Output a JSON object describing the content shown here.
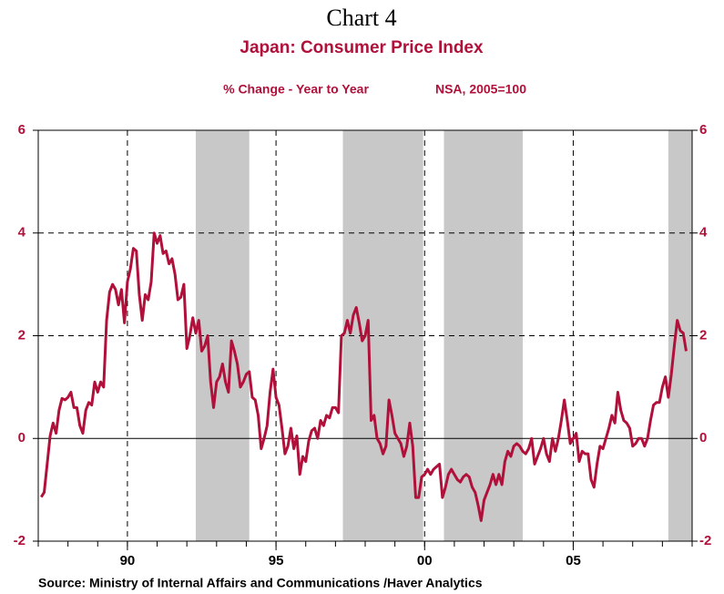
{
  "chart_data": {
    "type": "line",
    "title": "Chart 4",
    "subtitle": "Japan: Consumer Price Index",
    "y_label": "% Change - Year to Year",
    "note": "NSA, 2005=100",
    "source": "Source:  Ministry of Internal Affairs and Communications /Haver Analytics",
    "color": "#b0103a",
    "shade_color": "#c8c8c8",
    "shaded_periods": [
      [
        1992.3,
        1994.1
      ],
      [
        1997.25,
        1999.95
      ],
      [
        2000.65,
        2003.3
      ],
      [
        2008.2,
        2009.0
      ]
    ],
    "xlim": [
      1987,
      2009
    ],
    "xticks": [
      {
        "value": 1990,
        "label": "90"
      },
      {
        "value": 1995,
        "label": "95"
      },
      {
        "value": 2000,
        "label": "00"
      },
      {
        "value": 2005,
        "label": "05"
      }
    ],
    "ylim": [
      -2,
      6
    ],
    "yticks": [
      -2,
      0,
      2,
      4,
      6
    ],
    "y2lim": [
      -2,
      6
    ],
    "y2ticks": [
      -2,
      0,
      2,
      4,
      6
    ],
    "grid": true,
    "x": [
      1987.1,
      1987.2,
      1987.3,
      1987.4,
      1987.5,
      1987.6,
      1987.7,
      1987.8,
      1987.9,
      1988.0,
      1988.1,
      1988.2,
      1988.3,
      1988.4,
      1988.5,
      1988.6,
      1988.7,
      1988.8,
      1988.9,
      1989.0,
      1989.1,
      1989.2,
      1989.3,
      1989.4,
      1989.5,
      1989.6,
      1989.7,
      1989.8,
      1989.9,
      1990.0,
      1990.1,
      1990.2,
      1990.3,
      1990.4,
      1990.5,
      1990.6,
      1990.7,
      1990.8,
      1990.9,
      1991.0,
      1991.1,
      1991.2,
      1991.3,
      1991.4,
      1991.5,
      1991.6,
      1991.7,
      1991.8,
      1991.9,
      1992.0,
      1992.1,
      1992.2,
      1992.3,
      1992.4,
      1992.5,
      1992.6,
      1992.7,
      1992.8,
      1992.9,
      1993.0,
      1993.1,
      1993.2,
      1993.3,
      1993.4,
      1993.5,
      1993.6,
      1993.7,
      1993.8,
      1993.9,
      1994.0,
      1994.1,
      1994.2,
      1994.3,
      1994.4,
      1994.5,
      1994.6,
      1994.7,
      1994.8,
      1994.9,
      1995.0,
      1995.1,
      1995.2,
      1995.3,
      1995.4,
      1995.5,
      1995.6,
      1995.7,
      1995.8,
      1995.9,
      1996.0,
      1996.1,
      1996.2,
      1996.3,
      1996.4,
      1996.5,
      1996.6,
      1996.7,
      1996.8,
      1996.9,
      1997.0,
      1997.1,
      1997.2,
      1997.3,
      1997.4,
      1997.5,
      1997.6,
      1997.7,
      1997.8,
      1997.9,
      1998.0,
      1998.1,
      1998.2,
      1998.3,
      1998.4,
      1998.5,
      1998.6,
      1998.7,
      1998.8,
      1998.9,
      1999.0,
      1999.1,
      1999.2,
      1999.3,
      1999.4,
      1999.5,
      1999.6,
      1999.7,
      1999.8,
      1999.9,
      2000.0,
      2000.1,
      2000.2,
      2000.3,
      2000.4,
      2000.5,
      2000.6,
      2000.7,
      2000.8,
      2000.9,
      2001.0,
      2001.1,
      2001.2,
      2001.3,
      2001.4,
      2001.5,
      2001.6,
      2001.7,
      2001.8,
      2001.9,
      2002.0,
      2002.1,
      2002.2,
      2002.3,
      2002.4,
      2002.5,
      2002.6,
      2002.7,
      2002.8,
      2002.9,
      2003.0,
      2003.1,
      2003.2,
      2003.3,
      2003.4,
      2003.5,
      2003.6,
      2003.7,
      2003.8,
      2003.9,
      2004.0,
      2004.1,
      2004.2,
      2004.3,
      2004.4,
      2004.5,
      2004.6,
      2004.7,
      2004.8,
      2004.9,
      2005.0,
      2005.1,
      2005.2,
      2005.3,
      2005.4,
      2005.5,
      2005.6,
      2005.7,
      2005.8,
      2005.9,
      2006.0,
      2006.1,
      2006.2,
      2006.3,
      2006.4,
      2006.5,
      2006.6,
      2006.7,
      2006.8,
      2006.9,
      2007.0,
      2007.1,
      2007.2,
      2007.3,
      2007.4,
      2007.5,
      2007.6,
      2007.7,
      2007.8,
      2007.9,
      2008.0,
      2008.1,
      2008.2,
      2008.3,
      2008.4,
      2008.5,
      2008.6,
      2008.7,
      2008.8
    ],
    "values": [
      -1.14,
      -1.05,
      -0.5,
      0.05,
      0.3,
      0.1,
      0.55,
      0.78,
      0.75,
      0.8,
      0.9,
      0.6,
      0.6,
      0.25,
      0.1,
      0.55,
      0.7,
      0.65,
      1.1,
      0.9,
      1.1,
      1.0,
      2.3,
      2.85,
      3.0,
      2.9,
      2.6,
      2.9,
      2.25,
      3.05,
      3.3,
      3.7,
      3.65,
      2.8,
      2.3,
      2.8,
      2.7,
      3.05,
      4.0,
      3.8,
      3.95,
      3.6,
      3.65,
      3.4,
      3.5,
      3.2,
      2.7,
      2.75,
      3.0,
      1.75,
      2.0,
      2.35,
      2.05,
      2.3,
      1.7,
      1.8,
      2.0,
      1.1,
      0.6,
      1.1,
      1.2,
      1.45,
      1.1,
      0.9,
      1.9,
      1.7,
      1.45,
      1.0,
      1.1,
      1.25,
      1.3,
      0.8,
      0.75,
      0.45,
      -0.2,
      0.0,
      0.25,
      0.9,
      1.35,
      0.8,
      0.65,
      0.2,
      -0.3,
      -0.15,
      0.2,
      -0.2,
      0.05,
      -0.7,
      -0.35,
      -0.45,
      -0.05,
      0.15,
      0.2,
      0.0,
      0.35,
      0.25,
      0.45,
      0.4,
      0.6,
      0.6,
      0.5,
      2.0,
      2.05,
      2.3,
      2.05,
      2.4,
      2.55,
      2.25,
      1.9,
      2.0,
      2.3,
      0.35,
      0.45,
      0.0,
      -0.1,
      -0.3,
      -0.15,
      0.75,
      0.45,
      0.1,
      0.0,
      -0.1,
      -0.35,
      -0.15,
      0.3,
      -0.15,
      -1.15,
      -1.15,
      -0.75,
      -0.7,
      -0.6,
      -0.7,
      -0.6,
      -0.55,
      -0.5,
      -1.15,
      -0.95,
      -0.7,
      -0.6,
      -0.7,
      -0.8,
      -0.85,
      -0.75,
      -0.7,
      -0.75,
      -0.95,
      -1.05,
      -1.3,
      -1.6,
      -1.2,
      -1.05,
      -0.9,
      -0.7,
      -0.9,
      -0.7,
      -0.9,
      -0.45,
      -0.25,
      -0.35,
      -0.15,
      -0.1,
      -0.15,
      -0.25,
      -0.3,
      -0.2,
      0.0,
      -0.5,
      -0.35,
      -0.2,
      0.0,
      -0.3,
      -0.45,
      0.0,
      -0.25,
      0.0,
      0.35,
      0.75,
      0.35,
      -0.1,
      0.0,
      0.1,
      -0.45,
      -0.25,
      -0.3,
      -0.3,
      -0.8,
      -0.95,
      -0.5,
      -0.15,
      -0.2,
      0.0,
      0.2,
      0.45,
      0.3,
      0.9,
      0.55,
      0.35,
      0.3,
      0.2,
      -0.15,
      -0.1,
      0.0,
      0.0,
      -0.15,
      0.0,
      0.35,
      0.65,
      0.7,
      0.7,
      1.0,
      1.2,
      0.8,
      1.25,
      1.8,
      2.3,
      2.1,
      2.05,
      1.7
    ]
  }
}
